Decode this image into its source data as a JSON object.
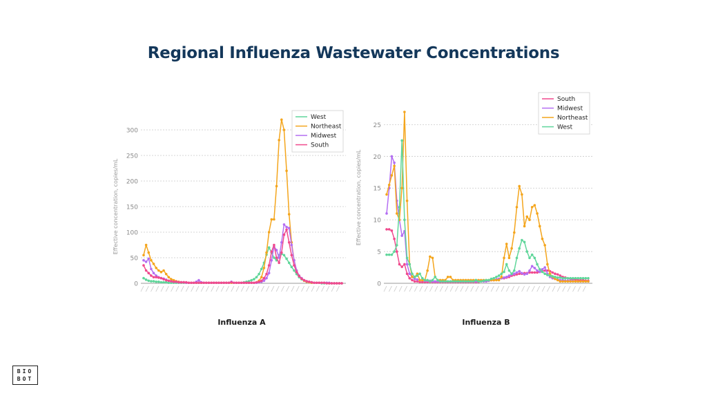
{
  "title": "Regional Influenza Wastewater Concentrations",
  "logo": {
    "line1": "BIO",
    "line2": "BOT"
  },
  "chart_data": [
    {
      "type": "line",
      "title": "Influenza A",
      "ylabel": "Effective concentration, copies/mL",
      "ylim": [
        0,
        300
      ],
      "yticks": [
        0,
        50,
        100,
        150,
        200,
        250,
        300
      ],
      "grid": true,
      "legend": "top-right",
      "npoints": 80,
      "series": [
        {
          "name": "West",
          "color": "#5fd69a",
          "values": [
            10,
            7,
            5,
            4,
            4,
            3,
            3,
            2,
            2,
            2,
            1,
            1,
            1,
            1,
            1,
            1,
            1,
            1,
            1,
            1,
            1,
            1,
            1,
            1,
            1,
            1,
            1,
            1,
            1,
            1,
            1,
            1,
            1,
            1,
            1,
            1,
            1,
            1,
            1,
            1,
            2,
            3,
            4,
            6,
            8,
            12,
            18,
            28,
            40,
            56,
            70,
            60,
            50,
            45,
            55,
            58,
            55,
            48,
            40,
            32,
            25,
            18,
            12,
            8,
            5,
            3,
            2,
            1,
            1,
            1,
            1,
            0,
            0,
            0,
            0,
            0,
            0,
            0,
            0,
            0
          ]
        },
        {
          "name": "Northeast",
          "color": "#f4a51c",
          "values": [
            55,
            75,
            60,
            45,
            38,
            30,
            25,
            22,
            25,
            18,
            12,
            8,
            6,
            4,
            3,
            2,
            2,
            1,
            1,
            1,
            1,
            1,
            1,
            1,
            1,
            1,
            1,
            1,
            1,
            1,
            1,
            1,
            1,
            1,
            1,
            1,
            1,
            1,
            1,
            1,
            1,
            1,
            1,
            1,
            1,
            2,
            5,
            12,
            30,
            60,
            100,
            125,
            125,
            190,
            280,
            320,
            300,
            220,
            135,
            80,
            45,
            25,
            15,
            9,
            5,
            3,
            2,
            1,
            1,
            1,
            1,
            1,
            1,
            1,
            0,
            0,
            0,
            0,
            0,
            0
          ]
        },
        {
          "name": "Midwest",
          "color": "#b46ef2",
          "values": [
            45,
            42,
            48,
            28,
            20,
            15,
            12,
            10,
            9,
            7,
            5,
            4,
            3,
            3,
            2,
            2,
            2,
            1,
            1,
            1,
            1,
            3,
            6,
            2,
            1,
            1,
            1,
            1,
            1,
            1,
            1,
            1,
            1,
            1,
            1,
            3,
            1,
            1,
            1,
            1,
            1,
            1,
            1,
            1,
            1,
            1,
            2,
            3,
            5,
            10,
            20,
            45,
            72,
            65,
            50,
            80,
            115,
            110,
            108,
            75,
            45,
            25,
            15,
            10,
            6,
            4,
            3,
            2,
            1,
            1,
            1,
            1,
            1,
            1,
            1,
            0,
            0,
            0,
            0,
            0
          ]
        },
        {
          "name": "South",
          "color": "#f0498d",
          "values": [
            35,
            25,
            20,
            15,
            12,
            12,
            11,
            10,
            8,
            6,
            5,
            4,
            3,
            3,
            2,
            2,
            2,
            2,
            1,
            1,
            1,
            1,
            1,
            1,
            1,
            1,
            1,
            1,
            1,
            1,
            1,
            1,
            1,
            1,
            1,
            2,
            1,
            1,
            1,
            1,
            1,
            1,
            1,
            1,
            1,
            2,
            3,
            5,
            10,
            18,
            35,
            62,
            75,
            50,
            40,
            60,
            95,
            105,
            80,
            55,
            35,
            22,
            14,
            9,
            6,
            4,
            3,
            2,
            1,
            1,
            1,
            1,
            1,
            0,
            0,
            0,
            0,
            0,
            0,
            0
          ]
        }
      ]
    },
    {
      "type": "line",
      "title": "Influenza B",
      "ylabel": "Effective concentration, copies/mL",
      "ylim": [
        0,
        27
      ],
      "yticks": [
        0,
        5,
        10,
        15,
        20,
        25
      ],
      "grid": true,
      "legend": "top-right",
      "npoints": 80,
      "series": [
        {
          "name": "South",
          "color": "#f0498d",
          "values": [
            8.5,
            8.5,
            8.3,
            7,
            5,
            3,
            2.6,
            3,
            1.5,
            0.8,
            0.5,
            0.3,
            0.3,
            0.2,
            0.2,
            0.2,
            0.2,
            0.2,
            0.2,
            0.2,
            0.2,
            0.2,
            0.2,
            0.2,
            0.2,
            0.2,
            0.2,
            0.2,
            0.2,
            0.2,
            0.2,
            0.2,
            0.2,
            0.2,
            0.2,
            0.2,
            0.2,
            0.3,
            0.3,
            0.3,
            0.4,
            0.5,
            0.5,
            0.6,
            0.7,
            0.8,
            0.8,
            0.9,
            1,
            1.2,
            1.3,
            1.4,
            1.5,
            1.5,
            1.6,
            1.6,
            1.7,
            1.7,
            1.7,
            1.7,
            1.8,
            1.9,
            2,
            2,
            1.9,
            1.7,
            1.5,
            1.4,
            1.2,
            1,
            0.9,
            0.8,
            0.7,
            0.6,
            0.6,
            0.5,
            0.5,
            0.5,
            0.4,
            0.4
          ]
        },
        {
          "name": "Midwest",
          "color": "#b46ef2",
          "values": [
            11,
            15,
            20,
            19,
            13,
            10,
            7.5,
            8.2,
            3,
            1.5,
            1,
            0.7,
            0.6,
            0.5,
            0.5,
            0.4,
            0.4,
            0.4,
            0.3,
            0.3,
            0.3,
            0.3,
            0.3,
            0.3,
            0.3,
            0.3,
            0.3,
            0.3,
            0.3,
            0.3,
            0.3,
            0.3,
            0.3,
            0.3,
            0.3,
            0.3,
            0.3,
            0.3,
            0.3,
            0.3,
            0.4,
            0.5,
            0.5,
            0.6,
            0.7,
            0.8,
            0.9,
            1,
            1.2,
            1.4,
            1.5,
            1.7,
            1.9,
            1.6,
            1.4,
            1.5,
            2,
            2.7,
            2.4,
            2,
            1.8,
            2.2,
            2.5,
            1.5,
            1,
            0.8,
            0.7,
            0.6,
            0.5,
            0.5,
            0.4,
            0.4,
            0.4,
            0.4,
            0.3,
            0.3,
            0.3,
            0.3,
            0.3,
            0.3
          ]
        },
        {
          "name": "Northeast",
          "color": "#f4a51c",
          "values": [
            14,
            15.5,
            17,
            18.5,
            11,
            10,
            15,
            27,
            13,
            3,
            1,
            1,
            1.5,
            0.5,
            0.5,
            0.5,
            2,
            4.2,
            4,
            1,
            0.5,
            0.5,
            0.5,
            0.5,
            1,
            1,
            0.5,
            0.5,
            0.5,
            0.5,
            0.5,
            0.5,
            0.5,
            0.5,
            0.5,
            0.5,
            0.5,
            0.5,
            0.5,
            0.5,
            0.5,
            0.5,
            0.5,
            0.5,
            0.5,
            1,
            4,
            6.2,
            4,
            5.5,
            8,
            12,
            15.3,
            14,
            9,
            10.5,
            10,
            12,
            12.3,
            11,
            9,
            7,
            6,
            3,
            1.5,
            1,
            0.7,
            0.5,
            0.3,
            0.3,
            0.3,
            0.3,
            0.3,
            0.3,
            0.3,
            0.3,
            0.3,
            0.3,
            0.3,
            0.3
          ]
        },
        {
          "name": "West",
          "color": "#5fd69a",
          "values": [
            4.5,
            4.5,
            4.5,
            5,
            6,
            12,
            22.5,
            10,
            4,
            3,
            1.5,
            1,
            1.2,
            1.5,
            0.8,
            0.5,
            0.5,
            0.3,
            0.5,
            1,
            0.5,
            0.3,
            0.3,
            0.3,
            0.3,
            0.3,
            0.3,
            0.3,
            0.3,
            0.3,
            0.3,
            0.3,
            0.3,
            0.3,
            0.3,
            0.5,
            0.3,
            0.3,
            0.4,
            0.5,
            0.5,
            0.7,
            0.8,
            1,
            1.2,
            1.5,
            1.8,
            3,
            2,
            1.5,
            2,
            4,
            5.5,
            6.8,
            6.5,
            5,
            4,
            4.5,
            4,
            3,
            2.2,
            1.8,
            1.5,
            1.3,
            1.2,
            1.1,
            1,
            0.9,
            0.9,
            0.8,
            0.8,
            0.8,
            0.8,
            0.8,
            0.8,
            0.8,
            0.8,
            0.8,
            0.8,
            0.8
          ]
        }
      ]
    }
  ]
}
